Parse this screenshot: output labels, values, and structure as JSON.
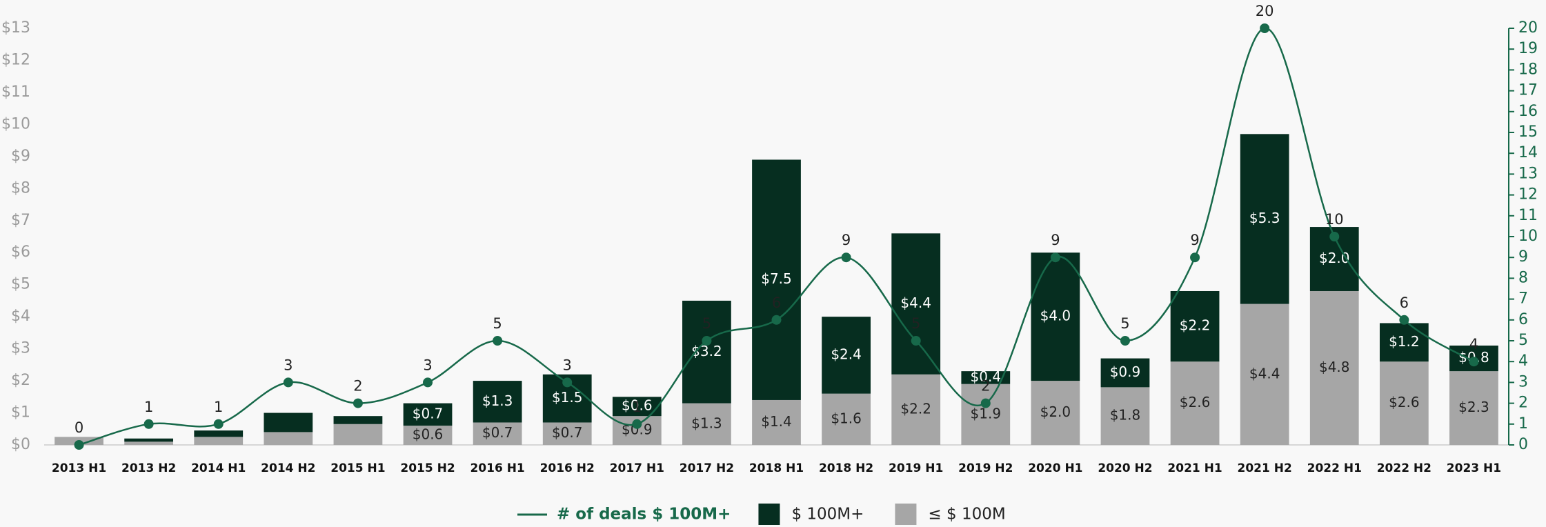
{
  "chart_data": {
    "type": "bar",
    "categories": [
      "2013 H1",
      "2013 H2",
      "2014 H1",
      "2014 H2",
      "2015 H1",
      "2015 H2",
      "2016 H1",
      "2016 H2",
      "2017 H1",
      "2017 H2",
      "2018 H1",
      "2018 H2",
      "2019 H1",
      "2019 H2",
      "2020 H1",
      "2020 H2",
      "2021 H1",
      "2021 H2",
      "2022 H1",
      "2022 H2",
      "2023 H1"
    ],
    "series": [
      {
        "name": "# of deals $ 100M+",
        "type": "line",
        "axis": "y2",
        "color": "#17694a",
        "values": [
          0,
          1,
          1,
          3,
          2,
          3,
          5,
          3,
          1,
          5,
          6,
          9,
          5,
          2,
          9,
          5,
          9,
          20,
          10,
          6,
          4
        ]
      },
      {
        "name": "$ 100M+",
        "color": "#062e20",
        "values": [
          0,
          0.1,
          0.2,
          0.6,
          0.25,
          0.7,
          1.3,
          1.5,
          0.6,
          3.2,
          7.5,
          2.4,
          4.4,
          0.4,
          4.0,
          0.9,
          2.2,
          5.3,
          2.0,
          1.2,
          0.8
        ],
        "value_labels": [
          null,
          null,
          null,
          null,
          null,
          "$0.7",
          "$1.3",
          "$1.5",
          "$0.6",
          "$3.2",
          "$7.5",
          "$2.4",
          "$4.4",
          "$0.4",
          "$4.0",
          "$0.9",
          "$2.2",
          "$5.3",
          "$2.0",
          "$1.2",
          "$0.8"
        ]
      },
      {
        "name": "≤ $ 100M",
        "color": "#a6a6a6",
        "values": [
          0.25,
          0.1,
          0.25,
          0.4,
          0.65,
          0.6,
          0.7,
          0.7,
          0.9,
          1.3,
          1.4,
          1.6,
          2.2,
          1.9,
          2.0,
          1.8,
          2.6,
          4.4,
          4.8,
          2.6,
          2.3
        ],
        "value_labels": [
          null,
          null,
          null,
          null,
          null,
          "$0.6",
          "$0.7",
          "$0.7",
          "$0.9",
          "$1.3",
          "$1.4",
          "$1.6",
          "$2.2",
          "$1.9",
          "$2.0",
          "$1.8",
          "$2.6",
          "$4.4",
          "$4.8",
          "$2.6",
          "$2.3"
        ]
      }
    ],
    "ylim": [
      0,
      13
    ],
    "yticks": [
      {
        "value": 0,
        "label": "$0"
      },
      {
        "value": 1,
        "label": "$1"
      },
      {
        "value": 2,
        "label": "$2"
      },
      {
        "value": 3,
        "label": "$3"
      },
      {
        "value": 4,
        "label": "$4"
      },
      {
        "value": 5,
        "label": "$5"
      },
      {
        "value": 6,
        "label": "$6"
      },
      {
        "value": 7,
        "label": "$7"
      },
      {
        "value": 8,
        "label": "$8"
      },
      {
        "value": 9,
        "label": "$9"
      },
      {
        "value": 10,
        "label": "$10"
      },
      {
        "value": 11,
        "label": "$11"
      },
      {
        "value": 12,
        "label": "$12"
      },
      {
        "value": 13,
        "label": "$13"
      }
    ],
    "y2lim": [
      0,
      20
    ],
    "y2ticks": [
      0,
      1,
      2,
      3,
      4,
      5,
      6,
      7,
      8,
      9,
      10,
      11,
      12,
      13,
      14,
      15,
      16,
      17,
      18,
      19,
      20
    ],
    "legend": "bottom"
  }
}
